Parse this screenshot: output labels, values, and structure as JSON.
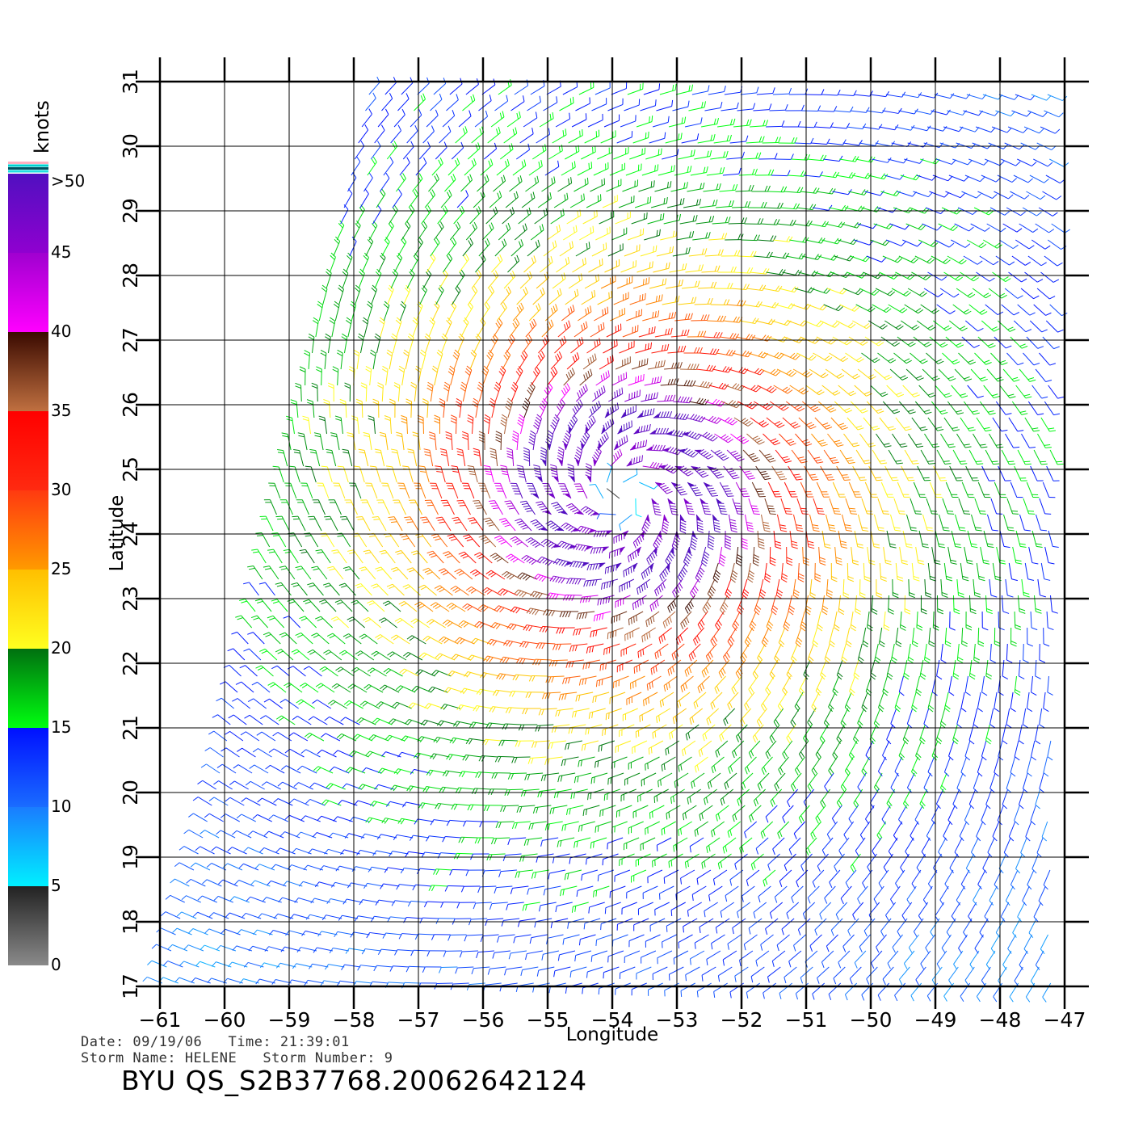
{
  "axes": {
    "xlabel": "Longitude",
    "ylabel": "Latitude",
    "lon_ticks": [
      -61,
      -60,
      -59,
      -58,
      -57,
      -56,
      -55,
      -54,
      -53,
      -52,
      -51,
      -50,
      -49,
      -48,
      -47
    ],
    "lat_ticks": [
      17,
      18,
      19,
      20,
      21,
      22,
      23,
      24,
      25,
      26,
      27,
      28,
      29,
      30,
      31
    ],
    "lon_range": [
      -61,
      -47
    ],
    "lat_range": [
      17,
      31
    ],
    "grid": true
  },
  "colorbar": {
    "title": "knots",
    "tick_labels": [
      "0",
      "5",
      "10",
      "15",
      "20",
      "25",
      "30",
      "35",
      "40",
      "45",
      ">50"
    ],
    "bands": [
      {
        "from": 0,
        "to": 5,
        "top": "#222222",
        "bottom": "#8a8a8a"
      },
      {
        "from": 5,
        "to": 10,
        "top": "#1a7cff",
        "bottom": "#00f0ff"
      },
      {
        "from": 10,
        "to": 15,
        "top": "#0010ff",
        "bottom": "#1a6cff"
      },
      {
        "from": 15,
        "to": 20,
        "top": "#007010",
        "bottom": "#00ff10"
      },
      {
        "from": 20,
        "to": 25,
        "top": "#ffbf00",
        "bottom": "#ffff20"
      },
      {
        "from": 25,
        "to": 30,
        "top": "#ff3a10",
        "bottom": "#ff9a00"
      },
      {
        "from": 30,
        "to": 35,
        "top": "#ff0000",
        "bottom": "#ff2a10"
      },
      {
        "from": 35,
        "to": 40,
        "top": "#3a0a00",
        "bottom": "#c07040"
      },
      {
        "from": 40,
        "to": 45,
        "top": "#a000d0",
        "bottom": "#ff00ff"
      },
      {
        "from": 45,
        "to": 50,
        "top": "#5010c0",
        "bottom": "#9000d0"
      }
    ]
  },
  "storm": {
    "center_lon": -53.8,
    "center_lat": 24.6,
    "date_line": "Date: 09/19/06   Time: 21:39:01",
    "name_line": "Storm Name: HELENE   Storm Number: 9",
    "product_id": "BYU QS_S2B37768.20062642124"
  }
}
